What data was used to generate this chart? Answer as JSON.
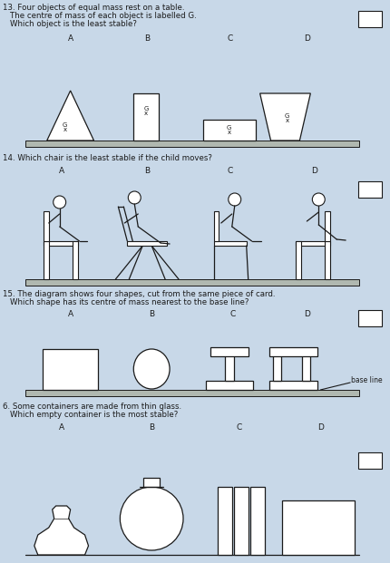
{
  "bg_color": "#c8d8e8",
  "line_color": "#1a1a1a",
  "q13_num": "13.",
  "q13_line1": "Four objects of equal mass rest on a table.",
  "q13_line2": "The centre of mass of each object is labelled G.",
  "q13_line3": "Which object is the least stable?",
  "q14_num": "14.",
  "q14_line1": "Which chair is the least stable if the child moves?",
  "q15_num": "15.",
  "q15_line1": "The diagram shows four shapes, cut from the same piece of card.",
  "q15_line2": "Which shape has its centre of mass nearest to the base line?",
  "q6_num": "6.",
  "q6_line1": "Some containers are made from thin glass.",
  "q6_line2": "Which empty container is the most stable?",
  "shelf_color": "#b0b8b0",
  "abcd_labels": [
    "A",
    "B",
    "C",
    "D"
  ]
}
